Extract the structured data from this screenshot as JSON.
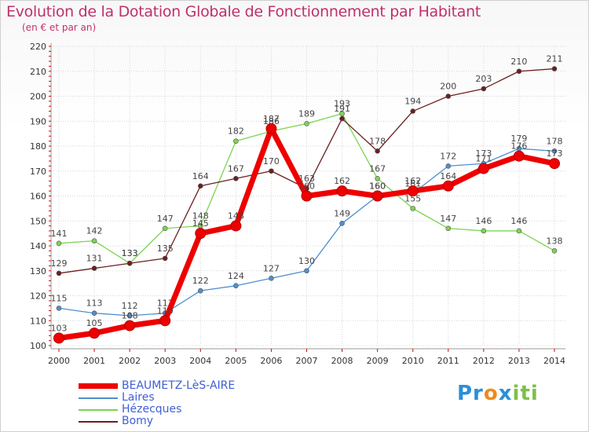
{
  "header": {
    "title": "Evolution de la Dotation Globale de Fonctionnement par Habitant",
    "subtitle": "(en € et par an)"
  },
  "logo": {
    "text": "Proxiti"
  },
  "colors": {
    "title": "#c0306a",
    "legend_text": "#3e5fd6",
    "grid": "#d6d6d6",
    "axis": "#999999",
    "tick_red": "#e00000"
  },
  "chart_data": {
    "type": "line",
    "title": "Evolution de la Dotation Globale de Fonctionnement par Habitant",
    "subtitle": "(en € et par an)",
    "xlabel": "",
    "ylabel": "",
    "categories": [
      "2000",
      "2001",
      "2002",
      "2003",
      "2004",
      "2005",
      "2006",
      "2007",
      "2008",
      "2009",
      "2010",
      "2011",
      "2012",
      "2013",
      "2014"
    ],
    "ylim": [
      100,
      220
    ],
    "yticks": [
      100,
      110,
      120,
      130,
      140,
      150,
      160,
      170,
      180,
      190,
      200,
      210,
      220
    ],
    "grid": true,
    "series": [
      {
        "name": "BEAUMETZ-LèS-AIRE",
        "color": "#ee0000",
        "highlight": true,
        "values": [
          103,
          105,
          108,
          110,
          145,
          148,
          187,
          160,
          162,
          160,
          162,
          164,
          171,
          176,
          173
        ]
      },
      {
        "name": "Laires",
        "color": "#4f8fd0",
        "highlight": false,
        "values": [
          115,
          113,
          112,
          113,
          122,
          124,
          127,
          130,
          149,
          160,
          161,
          172,
          173,
          179,
          178
        ]
      },
      {
        "name": "Hézecques",
        "color": "#7dd353",
        "highlight": false,
        "values": [
          141,
          142,
          133,
          147,
          148,
          182,
          186,
          189,
          193,
          167,
          155,
          147,
          146,
          146,
          138
        ]
      },
      {
        "name": "Bomy",
        "color": "#6b1f1f",
        "highlight": false,
        "values": [
          129,
          131,
          133,
          135,
          164,
          167,
          170,
          163,
          191,
          178,
          194,
          200,
          203,
          210,
          211
        ]
      }
    ]
  }
}
